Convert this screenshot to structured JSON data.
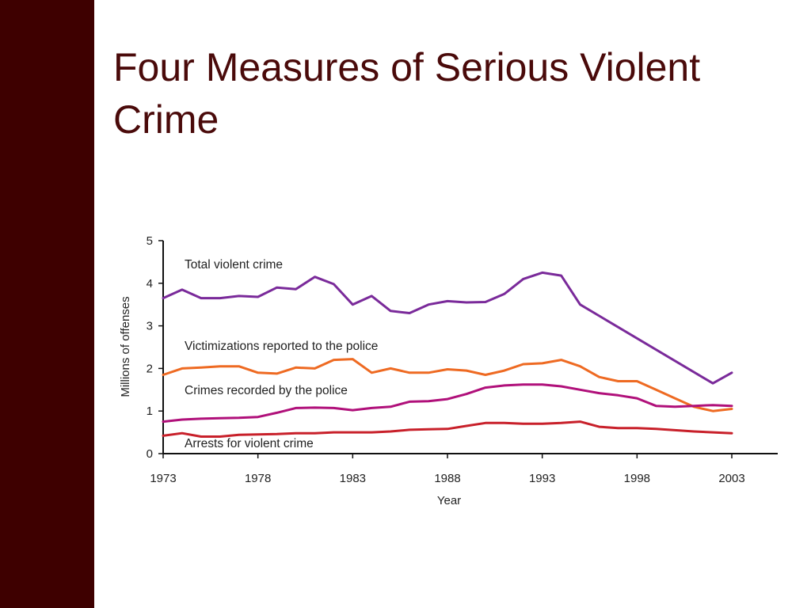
{
  "slide": {
    "title": "Four Measures of Serious Violent Crime",
    "colors": {
      "sidebar": "#3e0000",
      "title": "#4a0a0a"
    }
  },
  "chart_data": {
    "type": "line",
    "xlabel": "Year",
    "ylabel": "Millions of offenses",
    "xlim": [
      1973,
      2004
    ],
    "ylim": [
      0,
      5
    ],
    "xticks": [
      1973,
      1978,
      1983,
      1988,
      1993,
      1998,
      2003
    ],
    "yticks": [
      0,
      1,
      2,
      3,
      4,
      5
    ],
    "grid": false,
    "series": [
      {
        "name": "Total violent crime",
        "color": "#7a2a9a",
        "x": [
          1973,
          1974,
          1975,
          1976,
          1977,
          1978,
          1979,
          1980,
          1981,
          1982,
          1983,
          1984,
          1985,
          1986,
          1987,
          1988,
          1989,
          1990,
          1991,
          1992,
          1993,
          1994,
          1995,
          2002,
          2003
        ],
        "y": [
          3.65,
          3.85,
          3.65,
          3.65,
          3.7,
          3.68,
          3.9,
          3.86,
          4.15,
          3.98,
          3.5,
          3.7,
          3.35,
          3.3,
          3.5,
          3.58,
          3.55,
          3.56,
          3.75,
          4.1,
          4.25,
          4.18,
          3.5,
          1.65,
          1.9
        ]
      },
      {
        "name": "Victimizations reported to the police",
        "color": "#ee6a22",
        "x": [
          1973,
          1974,
          1975,
          1976,
          1977,
          1978,
          1979,
          1980,
          1981,
          1982,
          1983,
          1984,
          1985,
          1986,
          1987,
          1988,
          1989,
          1990,
          1991,
          1992,
          1993,
          1994,
          1995,
          1996,
          1997,
          1998,
          1999,
          2000,
          2001,
          2002,
          2003
        ],
        "y": [
          1.85,
          2.0,
          2.02,
          2.05,
          2.05,
          1.9,
          1.88,
          2.02,
          2.0,
          2.2,
          2.22,
          1.9,
          2.0,
          1.9,
          1.9,
          1.98,
          1.95,
          1.85,
          1.95,
          2.1,
          2.12,
          2.2,
          2.05,
          1.8,
          1.7,
          1.7,
          1.5,
          1.3,
          1.1,
          1.0,
          1.05
        ]
      },
      {
        "name": "Crimes recorded by the police",
        "color": "#b0107a",
        "x": [
          1973,
          1974,
          1975,
          1976,
          1977,
          1978,
          1979,
          1980,
          1981,
          1982,
          1983,
          1984,
          1985,
          1986,
          1987,
          1988,
          1989,
          1990,
          1991,
          1992,
          1993,
          1994,
          1995,
          1996,
          1997,
          1998,
          1999,
          2000,
          2001,
          2002,
          2003
        ],
        "y": [
          0.75,
          0.8,
          0.82,
          0.83,
          0.84,
          0.86,
          0.96,
          1.07,
          1.08,
          1.07,
          1.02,
          1.07,
          1.1,
          1.22,
          1.23,
          1.28,
          1.4,
          1.55,
          1.6,
          1.62,
          1.62,
          1.58,
          1.5,
          1.42,
          1.37,
          1.3,
          1.12,
          1.1,
          1.12,
          1.14,
          1.12
        ]
      },
      {
        "name": "Arrests for violent crime",
        "color": "#c8202a",
        "x": [
          1973,
          1974,
          1975,
          1976,
          1977,
          1978,
          1979,
          1980,
          1981,
          1982,
          1983,
          1984,
          1985,
          1986,
          1987,
          1988,
          1989,
          1990,
          1991,
          1992,
          1993,
          1994,
          1995,
          1996,
          1997,
          1998,
          1999,
          2000,
          2001,
          2002,
          2003
        ],
        "y": [
          0.42,
          0.48,
          0.4,
          0.4,
          0.44,
          0.45,
          0.46,
          0.48,
          0.48,
          0.5,
          0.5,
          0.5,
          0.52,
          0.56,
          0.57,
          0.58,
          0.65,
          0.72,
          0.72,
          0.7,
          0.7,
          0.72,
          0.75,
          0.63,
          0.6,
          0.6,
          0.58,
          0.55,
          0.52,
          0.5,
          0.48
        ]
      }
    ]
  }
}
